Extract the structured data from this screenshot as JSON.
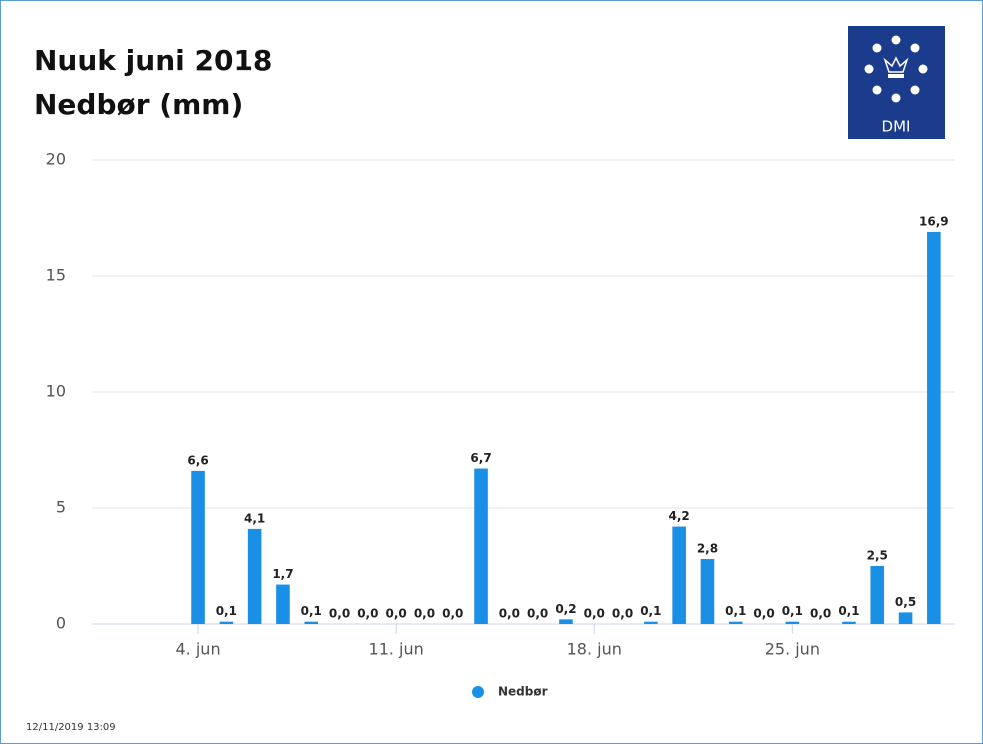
{
  "chart_data": {
    "type": "bar",
    "title": "Nuuk juni 2018",
    "subtitle": "Nedbør (mm)",
    "logo": "DMI",
    "timestamp": "12/11/2019 13:09",
    "categories": [
      null,
      null,
      null,
      "4. jun",
      null,
      null,
      null,
      null,
      null,
      null,
      "11. jun",
      null,
      null,
      null,
      null,
      null,
      null,
      "18. jun",
      null,
      null,
      null,
      null,
      null,
      null,
      "25. jun",
      null,
      null,
      null,
      null,
      null
    ],
    "series": [
      {
        "name": "Nedbør",
        "color": "#1a8fe6",
        "values": [
          null,
          null,
          null,
          6.6,
          0.1,
          4.1,
          1.7,
          0.1,
          0,
          0,
          0,
          0,
          0,
          6.7,
          0,
          0,
          0.2,
          0,
          0,
          0.1,
          4.2,
          2.8,
          0.1,
          0,
          0.1,
          0,
          0.1,
          2.5,
          0.5,
          16.9
        ],
        "value_labels": [
          null,
          null,
          null,
          "6,6",
          "0,1",
          "4,1",
          "1,7",
          "0,1",
          "0,0",
          "0,0",
          "0,0",
          "0,0",
          "0,0",
          "6,7",
          "0,0",
          "0,0",
          "0,2",
          "0,0",
          "0,0",
          "0,1",
          "4,2",
          "2,8",
          "0,1",
          "0,0",
          "0,1",
          "0,0",
          "0,1",
          "2,5",
          "0,5",
          "16,9"
        ]
      }
    ],
    "ylim": [
      0,
      20
    ],
    "yticks": [
      0,
      5,
      10,
      15,
      20
    ],
    "grid": true,
    "legend": "bottom"
  }
}
